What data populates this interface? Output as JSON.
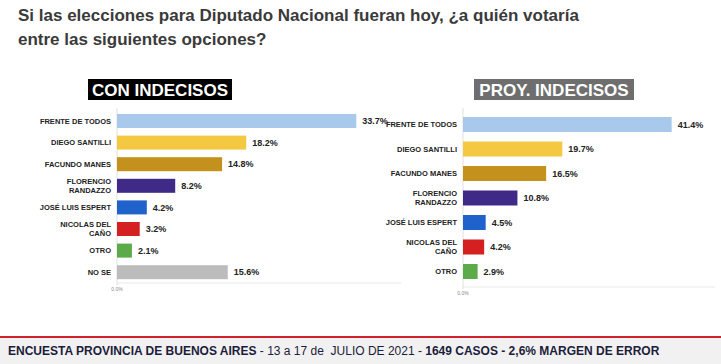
{
  "title": [
    "Si las elecciones para Diputado Nacional fueran hoy, ¿a quién votaría",
    "entre las siguientes opciones?"
  ],
  "footer": [
    "ENCUESTA PROVINCIA DE BUENOS AIRES",
    " - 13 a 17 de  JULIO DE 2021 - ",
    "1649 CASOS",
    " - 2,6% MARGEN DE ERROR"
  ],
  "chart_data": [
    {
      "type": "bar",
      "orientation": "horizontal",
      "title": "CON INDECISOS",
      "categories": [
        "FRENTE DE TODOS",
        "DIEGO SANTILLI",
        "FACUNDO MANES",
        "FLORENCIO\nRANDAZZO",
        "JOSÉ LUIS ESPERT",
        "NICOLAS DEL\nCAÑO",
        "OTRO",
        "NO SE"
      ],
      "values": [
        33.7,
        18.2,
        14.8,
        8.2,
        4.2,
        3.2,
        2.1,
        15.6
      ],
      "value_labels": [
        "33.7%",
        "18.2%",
        "14.8%",
        "8.2%",
        "4.2%",
        "3.2%",
        "2.1%",
        "15.6%"
      ],
      "colors": [
        "#a8c8ec",
        "#f5c842",
        "#c4921c",
        "#402a88",
        "#1f62cc",
        "#d42020",
        "#5cab4a",
        "#bcbcbc"
      ],
      "xlim": [
        0,
        40
      ],
      "xticks": [
        {
          "value": 0,
          "label": "0.0%"
        }
      ],
      "data_labels": true,
      "grid": false
    },
    {
      "type": "bar",
      "orientation": "horizontal",
      "title": "PROY. INDECISOS",
      "categories": [
        "FRENTE DE TODOS",
        "DIEGO SANTILLI",
        "FACUNDO MANES",
        "FLORENCIO\nRANDAZZO",
        "JOSÉ LUIS ESPERT",
        "NICOLAS DEL\nCAÑO",
        "OTRO"
      ],
      "values": [
        41.4,
        19.7,
        16.5,
        10.8,
        4.5,
        4.2,
        2.9
      ],
      "value_labels": [
        "41.4%",
        "19.7%",
        "16.5%",
        "10.8%",
        "4.5%",
        "4.2%",
        "2.9%"
      ],
      "colors": [
        "#a8c8ec",
        "#f5c842",
        "#c4921c",
        "#402a88",
        "#1f62cc",
        "#d42020",
        "#5cab4a"
      ],
      "xlim": [
        0,
        50
      ],
      "xticks": [
        {
          "value": 0,
          "label": "0.0%"
        }
      ],
      "data_labels": true,
      "grid": false
    }
  ]
}
